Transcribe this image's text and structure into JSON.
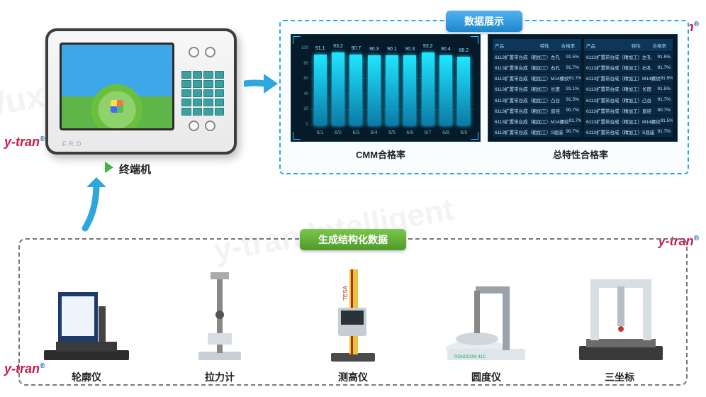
{
  "labels": {
    "terminal": "终端机",
    "data_panel": "数据展示",
    "equip_panel": "生成结构化数据",
    "chart1_caption": "CMM合格率",
    "chart2_caption": "总特性合格率",
    "terminal_brand": "F.R.D"
  },
  "arrow_color": "#2ea7e0",
  "cmm_chart": {
    "type": "bar",
    "ylim": [
      0,
      100
    ],
    "ytick_step": 20,
    "categories": [
      "6/1",
      "6/2",
      "6/3",
      "6/4",
      "6/5",
      "6/6",
      "6/7",
      "6/8",
      "6/9"
    ],
    "values": [
      91.1,
      93.2,
      90.7,
      90.3,
      90.1,
      90.3,
      93.2,
      90.4,
      88.2
    ],
    "bar_color_top": "#20e6ff",
    "bar_color_bottom": "#0a7aa8",
    "background": "#061a2a",
    "grid_color": "#134a66",
    "value_fontsize": 7,
    "label_fontsize": 7
  },
  "qual_table": {
    "type": "table",
    "header": [
      "产品",
      "特性",
      "合格率"
    ],
    "header_bg": "#0d3759",
    "row_bg": "#0a2842",
    "text_color": "#c5e6ff",
    "fontsize": 6.5,
    "left_rows": [
      [
        "6113扩置带台成（粗加工）",
        "左孔",
        "91.5%"
      ],
      [
        "6113扩置带台成（粗加工）",
        "右孔",
        "91.7%"
      ],
      [
        "6113扩置带台成（粗加工）",
        "M14螺纹",
        "91.7%"
      ],
      [
        "6113扩置带台成（粗加工）",
        "长度",
        "91.1%"
      ],
      [
        "6113扩置带台成（粗加工）",
        "凸台",
        "91.5%"
      ],
      [
        "6113扩置带台成（粗加工）",
        "直径",
        "90.7%"
      ],
      [
        "6113扩置带台成（粗加工）",
        "M14螺纹",
        "91.7%"
      ],
      [
        "6113扩置带台成（粗加工）",
        "S底座",
        "90.7%"
      ]
    ],
    "right_rows": [
      [
        "6113扩置带台成（精加工）",
        "左孔",
        "91.5%"
      ],
      [
        "6113扩置带台成（精加工）",
        "右孔",
        "91.7%"
      ],
      [
        "6113扩置带台成（精加工）",
        "M14螺纹",
        "91.5%"
      ],
      [
        "6113扩置带台成（精加工）",
        "长度",
        "91.5%"
      ],
      [
        "6113扩置带台成（精加工）",
        "凸台",
        "91.7%"
      ],
      [
        "6113扩置带台成（精加工）",
        "直径",
        "90.7%"
      ],
      [
        "6113扩置带台成（精加工）",
        "M14螺纹",
        "91.5%"
      ],
      [
        "6113扩置带台成（精加工）",
        "S底座",
        "91.7%"
      ]
    ]
  },
  "equipment": [
    {
      "label": "轮廓仪"
    },
    {
      "label": "拉力计"
    },
    {
      "label": "测高仪"
    },
    {
      "label": "圆度仪"
    },
    {
      "label": "三坐标"
    }
  ],
  "watermark": "y-tran"
}
